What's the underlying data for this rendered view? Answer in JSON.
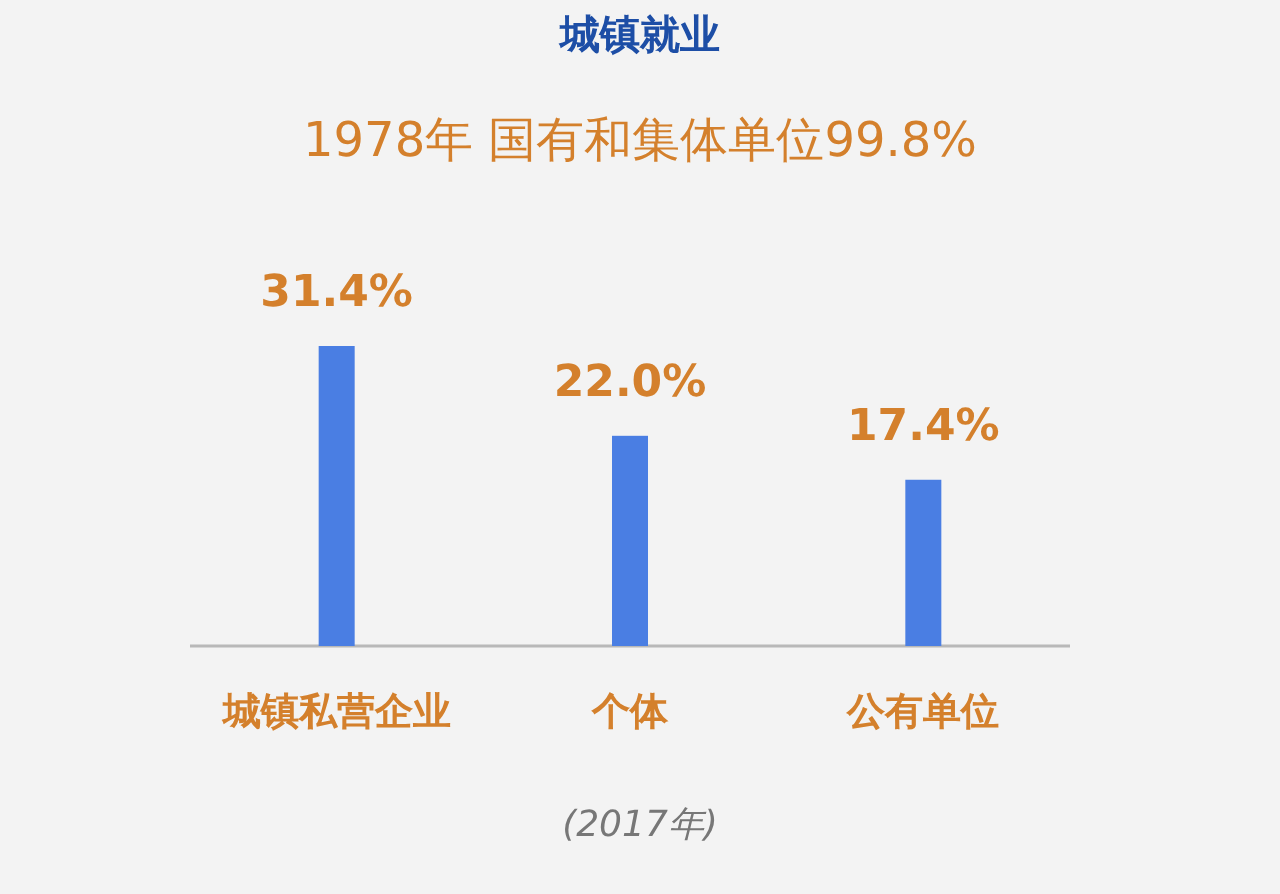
{
  "chart_data": {
    "type": "bar",
    "title": "城镇就业",
    "subtitle": "1978年 国有和集体单位99.8%",
    "categories": [
      "城镇私营企业",
      "个体",
      "公有单位"
    ],
    "values": [
      31.4,
      22.0,
      17.4
    ],
    "value_labels": [
      "31.4%",
      "22.0%",
      "17.4%"
    ],
    "color": "#4a7ee3",
    "annotations": [
      "(2017年)"
    ]
  }
}
